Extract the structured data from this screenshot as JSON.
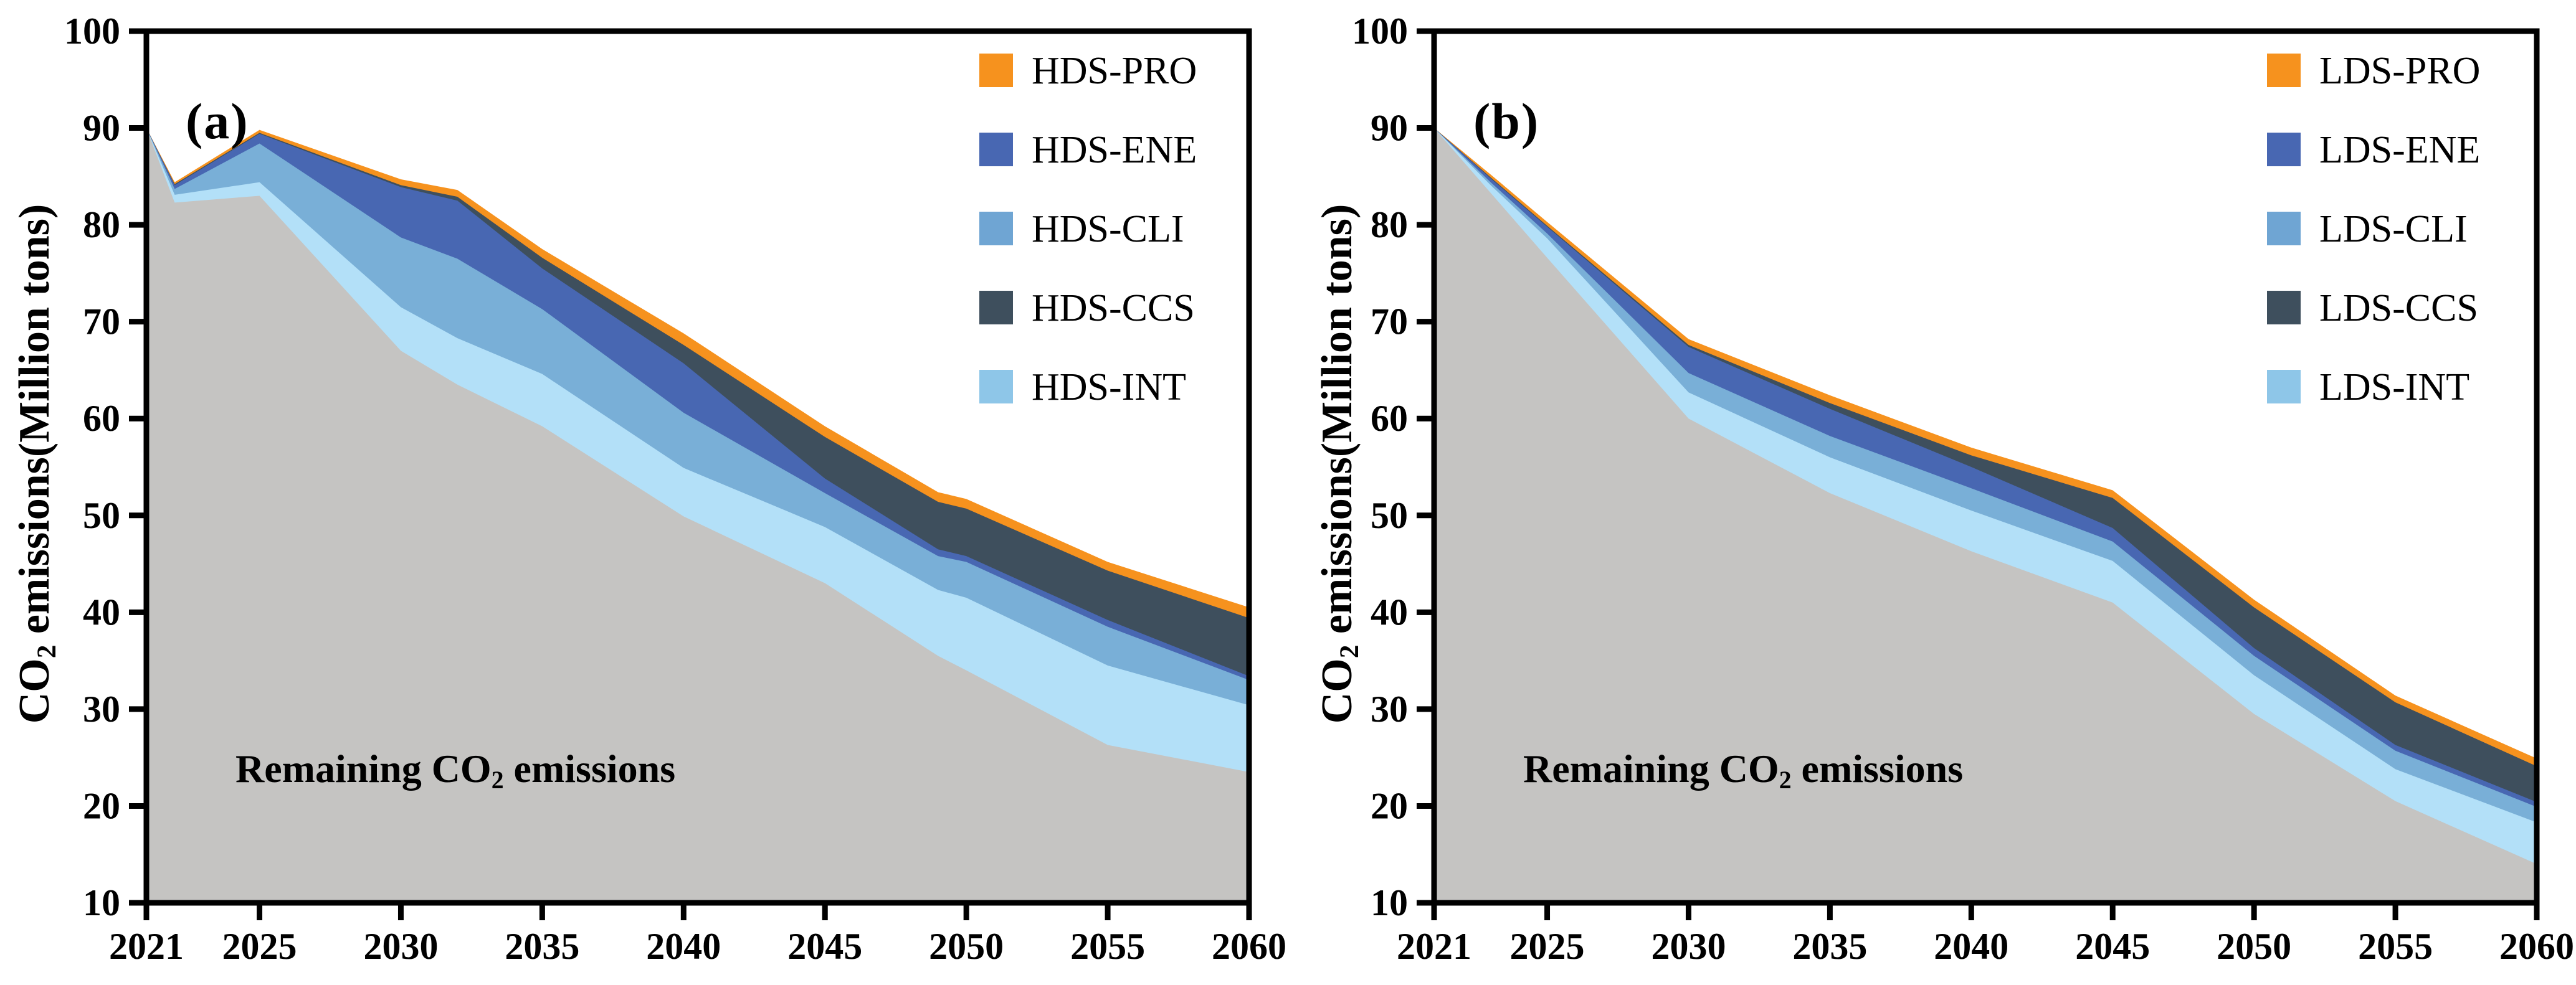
{
  "page": {
    "background": "#ffffff"
  },
  "y_axis_label": {
    "pre": "CO",
    "sub": "2",
    "post": " emissions(Million tons)"
  },
  "annotation": {
    "pre": "Remaining CO",
    "sub": "2",
    "post": " emissions"
  },
  "panels": [
    {
      "letter": "(a)"
    },
    {
      "letter": "(b)"
    }
  ],
  "colors": {
    "pro": "#F6921E",
    "ccs": "#3E4F5D",
    "ene": "#4867B2",
    "cli": "#79AFD7",
    "cli_legend": "#6FA5D3",
    "int": "#B3E0F8",
    "int_legend": "#8EC6E8",
    "remaining": "#C5C4C2",
    "axis": "#000000"
  },
  "chart_data": [
    {
      "id": "chart-a",
      "type": "area",
      "stacked": true,
      "panel_label": "(a)",
      "x_range": [
        2021,
        2060
      ],
      "y_range": [
        10,
        100
      ],
      "x_ticks": [
        2021,
        2025,
        2030,
        2035,
        2040,
        2045,
        2050,
        2055,
        2060
      ],
      "y_ticks": [
        100,
        90,
        80,
        70,
        60,
        50,
        40,
        30,
        20,
        10
      ],
      "ylabel": "CO2 emissions(Million tons)",
      "annotation": "Remaining CO2 emissions",
      "years": [
        2021,
        2022,
        2025,
        2030,
        2032,
        2035,
        2040,
        2045,
        2049,
        2050,
        2055,
        2060
      ],
      "series": [
        {
          "name": "HDS-PRO",
          "color": "#F6921E",
          "cumulative_top": [
            90,
            84.4,
            89.8,
            84.7,
            83.6,
            77.5,
            68.8,
            59.2,
            52.4,
            51.7,
            45.2,
            40.5
          ]
        },
        {
          "name": "HDS-CCS",
          "color": "#3E4F5D",
          "cumulative_top": [
            90,
            84.2,
            89.5,
            84.1,
            82.9,
            76.6,
            67.6,
            58.1,
            51.4,
            50.7,
            44.3,
            39.4
          ]
        },
        {
          "name": "HDS-ENE",
          "color": "#4867B2",
          "cumulative_top": [
            90,
            84.1,
            89.4,
            83.9,
            82.5,
            75.5,
            65.7,
            53.8,
            46.5,
            45.8,
            39.2,
            33.4
          ]
        },
        {
          "name": "HDS-CLI",
          "color": "#79AFD7",
          "legend_color": "#6FA5D3",
          "cumulative_top": [
            90,
            83.7,
            88.4,
            78.7,
            76.5,
            71.3,
            60.6,
            52.3,
            45.8,
            45.2,
            38.5,
            33.0
          ]
        },
        {
          "name": "HDS-INT",
          "color": "#B3E0F8",
          "legend_color": "#8EC6E8",
          "cumulative_top": [
            90,
            83.1,
            84.4,
            71.5,
            68.3,
            64.6,
            54.9,
            48.8,
            42.3,
            41.5,
            34.5,
            30.4
          ]
        },
        {
          "name": "Remaining CO2 emissions",
          "color": "#C5C4C2",
          "in_legend": false,
          "cumulative_top": [
            90,
            82.3,
            83.0,
            67.0,
            63.5,
            59.2,
            49.9,
            43.0,
            35.5,
            34.0,
            26.3,
            23.5
          ]
        }
      ],
      "legend_order": [
        "HDS-PRO",
        "HDS-ENE",
        "HDS-CLI",
        "HDS-CCS",
        "HDS-INT"
      ]
    },
    {
      "id": "chart-b",
      "type": "area",
      "stacked": true,
      "panel_label": "(b)",
      "x_range": [
        2021,
        2060
      ],
      "y_range": [
        10,
        100
      ],
      "x_ticks": [
        2021,
        2025,
        2030,
        2035,
        2040,
        2045,
        2050,
        2055,
        2060
      ],
      "y_ticks": [
        100,
        90,
        80,
        70,
        60,
        50,
        40,
        30,
        20,
        10
      ],
      "ylabel": "CO2 emissions(Million tons)",
      "annotation": "Remaining CO2 emissions",
      "years": [
        2021,
        2023,
        2025,
        2030,
        2035,
        2040,
        2045,
        2050,
        2055,
        2060
      ],
      "series": [
        {
          "name": "LDS-PRO",
          "color": "#F6921E",
          "cumulative_top": [
            90,
            85.2,
            80.3,
            68.2,
            62.4,
            57.0,
            52.6,
            41.3,
            31.4,
            24.9
          ]
        },
        {
          "name": "LDS-CCS",
          "color": "#3E4F5D",
          "cumulative_top": [
            90,
            84.9,
            79.9,
            67.6,
            61.6,
            56.2,
            51.8,
            40.5,
            30.7,
            24.1
          ]
        },
        {
          "name": "LDS-ENE",
          "color": "#4867B2",
          "cumulative_top": [
            90,
            84.8,
            79.8,
            67.4,
            61.0,
            55.0,
            48.7,
            36.3,
            26.3,
            20.4
          ]
        },
        {
          "name": "LDS-CLI",
          "color": "#79AFD7",
          "legend_color": "#6FA5D3",
          "cumulative_top": [
            90,
            84.4,
            79.1,
            64.7,
            58.2,
            52.8,
            47.3,
            35.5,
            25.7,
            19.9
          ]
        },
        {
          "name": "LDS-INT",
          "color": "#B3E0F8",
          "legend_color": "#8EC6E8",
          "cumulative_top": [
            90,
            84.1,
            78.6,
            62.7,
            56.0,
            50.5,
            45.3,
            33.5,
            23.8,
            18.3
          ]
        },
        {
          "name": "Remaining CO2 emissions",
          "color": "#C5C4C2",
          "in_legend": false,
          "cumulative_top": [
            90,
            83.3,
            76.6,
            60.0,
            52.3,
            46.3,
            41.0,
            29.5,
            20.5,
            14.0
          ]
        }
      ],
      "legend_order": [
        "LDS-PRO",
        "LDS-ENE",
        "LDS-CLI",
        "LDS-CCS",
        "LDS-INT"
      ]
    }
  ]
}
